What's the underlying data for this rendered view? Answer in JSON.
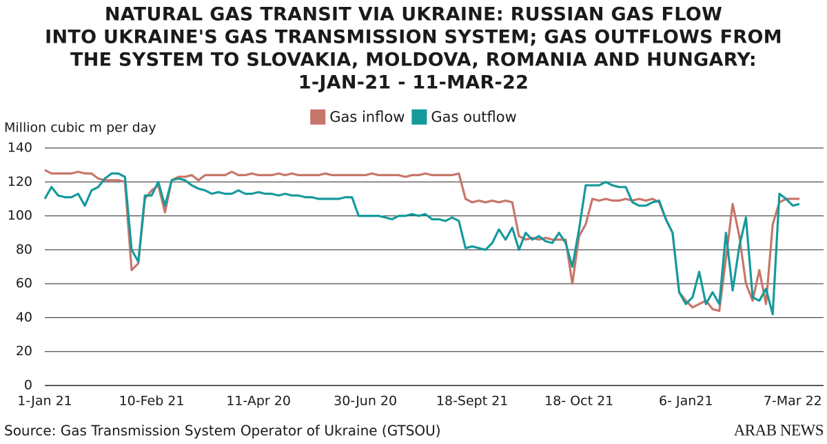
{
  "chart_data": {
    "type": "line",
    "title": [
      "NATURAL GAS TRANSIT VIA UKRAINE: RUSSIAN GAS FLOW",
      "INTO UKRAINE'S GAS TRANSMISSION SYSTEM; GAS OUTFLOWS FROM",
      "THE SYSTEM TO SLOVAKIA, MOLDOVA, ROMANIA AND HUNGARY:",
      "1-JAN-21 - 11-MAR-22"
    ],
    "y_label": "Million cubic m per day",
    "source": "Source: Gas Transmission System Operator of Ukraine (GTSOU)",
    "logo": "ARAB NEWS",
    "categories": [
      "1-Jan 21",
      null,
      null,
      null,
      null,
      null,
      null,
      null,
      null,
      null,
      null,
      null,
      null,
      null,
      null,
      null,
      "10-Feb 21",
      null,
      null,
      null,
      null,
      null,
      null,
      null,
      null,
      null,
      null,
      null,
      null,
      null,
      null,
      null,
      "11-Apr 20",
      null,
      null,
      null,
      null,
      null,
      null,
      null,
      null,
      null,
      null,
      null,
      null,
      null,
      null,
      null,
      "30-Jun 20",
      null,
      null,
      null,
      null,
      null,
      null,
      null,
      null,
      null,
      null,
      null,
      null,
      null,
      null,
      null,
      "18-Sept 21",
      null,
      null,
      null,
      null,
      null,
      null,
      null,
      null,
      null,
      null,
      null,
      null,
      null,
      null,
      null,
      "18- Oct 21",
      null,
      null,
      null,
      null,
      null,
      null,
      null,
      null,
      null,
      null,
      null,
      null,
      null,
      null,
      null,
      "6- Jan21",
      null,
      null,
      null,
      null,
      null,
      null,
      null,
      null,
      null,
      null,
      null,
      null,
      null,
      null,
      null,
      "7-Mar 22",
      null
    ],
    "series": [
      {
        "name": "Gas inflow",
        "color": "#c8756a",
        "values": [
          127,
          125,
          125,
          125,
          125,
          126,
          125,
          125,
          122,
          121,
          121,
          121,
          120,
          68,
          72,
          110,
          115,
          118,
          102,
          121,
          123,
          123,
          124,
          121,
          124,
          124,
          124,
          124,
          126,
          124,
          124,
          125,
          124,
          124,
          124,
          125,
          124,
          125,
          124,
          124,
          124,
          124,
          125,
          124,
          124,
          124,
          124,
          124,
          124,
          125,
          124,
          124,
          124,
          124,
          123,
          124,
          124,
          125,
          124,
          124,
          124,
          124,
          125,
          110,
          108,
          109,
          108,
          109,
          108,
          109,
          108,
          88,
          86,
          87,
          86,
          87,
          86,
          86,
          86,
          60,
          88,
          95,
          110,
          109,
          110,
          109,
          109,
          110,
          109,
          110,
          109,
          110,
          108,
          98,
          90,
          55,
          50,
          46,
          48,
          50,
          45,
          44,
          75,
          107,
          88,
          60,
          50,
          68,
          48,
          95,
          108,
          110,
          110,
          110
        ]
      },
      {
        "name": "Gas outflow",
        "color": "#159a9c",
        "values": [
          110,
          117,
          112,
          111,
          111,
          113,
          106,
          115,
          117,
          122,
          125,
          125,
          123,
          80,
          73,
          112,
          112,
          120,
          106,
          121,
          122,
          121,
          118,
          116,
          115,
          113,
          114,
          113,
          113,
          115,
          113,
          113,
          114,
          113,
          113,
          112,
          113,
          112,
          112,
          111,
          111,
          110,
          110,
          110,
          110,
          111,
          111,
          100,
          100,
          100,
          100,
          99,
          98,
          100,
          100,
          101,
          100,
          101,
          98,
          98,
          97,
          99,
          97,
          81,
          82,
          81,
          80,
          84,
          92,
          86,
          93,
          80,
          90,
          86,
          88,
          85,
          84,
          90,
          84,
          70,
          92,
          118,
          118,
          118,
          120,
          118,
          117,
          117,
          108,
          106,
          106,
          108,
          109,
          98,
          90,
          55,
          48,
          52,
          67,
          48,
          55,
          48,
          90,
          56,
          82,
          99,
          52,
          50,
          57,
          42,
          113,
          110,
          106,
          107
        ]
      }
    ],
    "ylim": [
      0,
      140
    ],
    "yticks": [
      0,
      20,
      40,
      60,
      80,
      100,
      120,
      140
    ],
    "grid": true,
    "legend": "top"
  }
}
